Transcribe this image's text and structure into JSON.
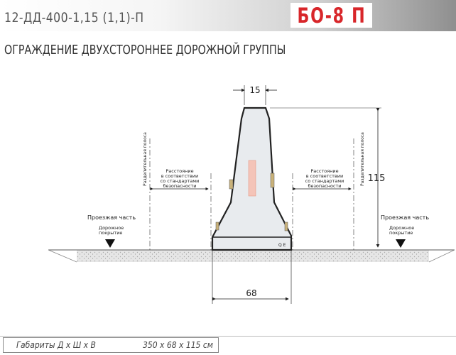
{
  "header": {
    "code": "12-ДД-400-1,15 (1,1)-П",
    "model": "БО-8 П"
  },
  "title": "ОГРАЖДЕНИЕ ДВУХСТОРОННЕЕ ДОРОЖНОЙ ГРУППЫ",
  "drawing": {
    "dim_top": "15",
    "dim_height": "115",
    "dim_base": "68",
    "separator_label": "Разделительная полоса",
    "distance_label_1": "Расстояние",
    "distance_label_2": "в соответствии",
    "distance_label_3": "со стандартами",
    "distance_label_4": "безопасности",
    "carriageway_label": "Проезжая часть",
    "road_surface_1": "Дорожное",
    "road_surface_2": "покрытие",
    "block_mark": "Q E"
  },
  "footer": {
    "label": "Габариты  Д х Ш х В",
    "value": "350 х 68 х 115 см"
  }
}
